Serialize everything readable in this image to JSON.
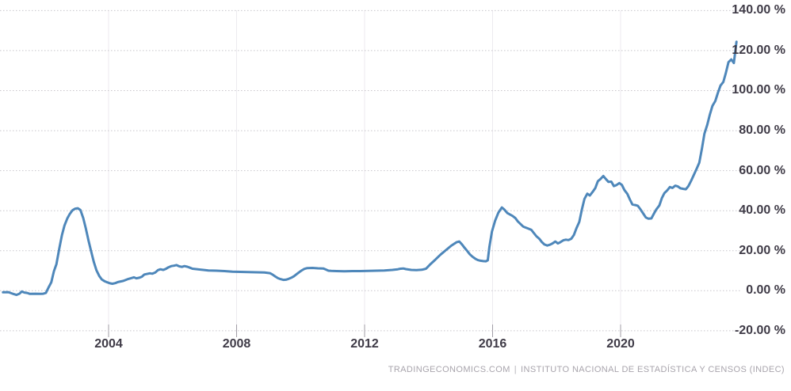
{
  "chart_data": {
    "type": "line",
    "title": "",
    "legend": "none",
    "grid": true,
    "x_range": [
      2000.6,
      2024.0
    ],
    "y_range": [
      -20,
      140
    ],
    "line_color": "#4e87ba",
    "y_ticks": [
      {
        "value": 140,
        "label": "140.00 %"
      },
      {
        "value": 120,
        "label": "120.00 %"
      },
      {
        "value": 100,
        "label": "100.00 %"
      },
      {
        "value": 80,
        "label": "80.00 %"
      },
      {
        "value": 60,
        "label": "60.00 %"
      },
      {
        "value": 40,
        "label": "40.00 %"
      },
      {
        "value": 20,
        "label": "20.00 %"
      },
      {
        "value": 0,
        "label": "0.00 %"
      },
      {
        "value": -20,
        "label": "-20.00 %"
      }
    ],
    "x_ticks": [
      {
        "year": 2004,
        "label": "2004"
      },
      {
        "year": 2008,
        "label": "2008"
      },
      {
        "year": 2012,
        "label": "2012"
      },
      {
        "year": 2016,
        "label": "2016"
      },
      {
        "year": 2020,
        "label": "2020"
      }
    ],
    "points": [
      [
        2000.7,
        -0.8
      ],
      [
        2000.87,
        -0.7
      ],
      [
        2001.04,
        -1.7
      ],
      [
        2001.12,
        -2.1
      ],
      [
        2001.21,
        -1.5
      ],
      [
        2001.29,
        -0.4
      ],
      [
        2001.37,
        -0.9
      ],
      [
        2001.46,
        -1.1
      ],
      [
        2001.54,
        -1.6
      ],
      [
        2001.71,
        -1.5
      ],
      [
        2001.87,
        -1.6
      ],
      [
        2001.96,
        -1.5
      ],
      [
        2002.04,
        -1.1
      ],
      [
        2002.12,
        1.5
      ],
      [
        2002.21,
        4.2
      ],
      [
        2002.29,
        9.7
      ],
      [
        2002.37,
        13.3
      ],
      [
        2002.46,
        21.1
      ],
      [
        2002.54,
        27.7
      ],
      [
        2002.62,
        32.5
      ],
      [
        2002.71,
        36.1
      ],
      [
        2002.79,
        38.4
      ],
      [
        2002.87,
        40.2
      ],
      [
        2002.96,
        41.0
      ],
      [
        2003.04,
        41.2
      ],
      [
        2003.12,
        40.3
      ],
      [
        2003.21,
        36.2
      ],
      [
        2003.29,
        31.1
      ],
      [
        2003.37,
        25.2
      ],
      [
        2003.46,
        19.4
      ],
      [
        2003.54,
        14.3
      ],
      [
        2003.62,
        10.2
      ],
      [
        2003.71,
        7.3
      ],
      [
        2003.79,
        5.6
      ],
      [
        2003.87,
        4.8
      ],
      [
        2003.96,
        4.2
      ],
      [
        2004.04,
        3.7
      ],
      [
        2004.12,
        3.5
      ],
      [
        2004.21,
        3.8
      ],
      [
        2004.29,
        4.3
      ],
      [
        2004.46,
        4.9
      ],
      [
        2004.62,
        5.9
      ],
      [
        2004.79,
        6.7
      ],
      [
        2004.87,
        6.2
      ],
      [
        2004.96,
        6.5
      ],
      [
        2005.04,
        7.0
      ],
      [
        2005.12,
        8.1
      ],
      [
        2005.29,
        8.7
      ],
      [
        2005.37,
        8.5
      ],
      [
        2005.46,
        9.1
      ],
      [
        2005.54,
        10.3
      ],
      [
        2005.62,
        10.7
      ],
      [
        2005.71,
        10.4
      ],
      [
        2005.79,
        10.9
      ],
      [
        2005.87,
        11.7
      ],
      [
        2005.96,
        12.3
      ],
      [
        2006.04,
        12.5
      ],
      [
        2006.12,
        12.8
      ],
      [
        2006.21,
        12.2
      ],
      [
        2006.29,
        11.9
      ],
      [
        2006.37,
        12.3
      ],
      [
        2006.46,
        12.0
      ],
      [
        2006.54,
        11.5
      ],
      [
        2006.62,
        11.0
      ],
      [
        2006.79,
        10.7
      ],
      [
        2006.96,
        10.4
      ],
      [
        2007.12,
        10.1
      ],
      [
        2007.37,
        10.0
      ],
      [
        2007.62,
        9.8
      ],
      [
        2007.87,
        9.5
      ],
      [
        2008.12,
        9.4
      ],
      [
        2008.37,
        9.3
      ],
      [
        2008.62,
        9.2
      ],
      [
        2008.87,
        9.1
      ],
      [
        2009.04,
        8.8
      ],
      [
        2009.12,
        8.1
      ],
      [
        2009.21,
        7.1
      ],
      [
        2009.29,
        6.3
      ],
      [
        2009.37,
        5.8
      ],
      [
        2009.46,
        5.4
      ],
      [
        2009.54,
        5.5
      ],
      [
        2009.62,
        5.9
      ],
      [
        2009.71,
        6.5
      ],
      [
        2009.79,
        7.2
      ],
      [
        2009.87,
        8.2
      ],
      [
        2009.96,
        9.3
      ],
      [
        2010.04,
        10.2
      ],
      [
        2010.12,
        10.9
      ],
      [
        2010.21,
        11.3
      ],
      [
        2010.37,
        11.4
      ],
      [
        2010.54,
        11.2
      ],
      [
        2010.71,
        11.1
      ],
      [
        2010.79,
        10.6
      ],
      [
        2010.87,
        10.0
      ],
      [
        2010.96,
        9.9
      ],
      [
        2011.12,
        9.8
      ],
      [
        2011.37,
        9.7
      ],
      [
        2011.62,
        9.8
      ],
      [
        2011.87,
        9.8
      ],
      [
        2012.12,
        9.9
      ],
      [
        2012.37,
        10.0
      ],
      [
        2012.62,
        10.1
      ],
      [
        2012.87,
        10.4
      ],
      [
        2013.04,
        10.7
      ],
      [
        2013.12,
        11.0
      ],
      [
        2013.21,
        11.1
      ],
      [
        2013.29,
        10.8
      ],
      [
        2013.46,
        10.4
      ],
      [
        2013.62,
        10.3
      ],
      [
        2013.79,
        10.5
      ],
      [
        2013.92,
        11.0
      ],
      [
        2014.04,
        13.0
      ],
      [
        2014.21,
        15.5
      ],
      [
        2014.37,
        18.0
      ],
      [
        2014.54,
        20.3
      ],
      [
        2014.71,
        22.5
      ],
      [
        2014.87,
        24.2
      ],
      [
        2014.96,
        24.6
      ],
      [
        2015.04,
        23.2
      ],
      [
        2015.12,
        21.5
      ],
      [
        2015.21,
        19.8
      ],
      [
        2015.29,
        18.2
      ],
      [
        2015.37,
        17.0
      ],
      [
        2015.46,
        16.0
      ],
      [
        2015.54,
        15.3
      ],
      [
        2015.62,
        15.0
      ],
      [
        2015.71,
        14.8
      ],
      [
        2015.79,
        14.7
      ],
      [
        2015.85,
        15.2
      ],
      [
        2015.9,
        22.0
      ],
      [
        2015.98,
        29.6
      ],
      [
        2016.08,
        35.0
      ],
      [
        2016.18,
        39.0
      ],
      [
        2016.29,
        41.6
      ],
      [
        2016.37,
        40.5
      ],
      [
        2016.46,
        38.8
      ],
      [
        2016.62,
        37.4
      ],
      [
        2016.71,
        36.3
      ],
      [
        2016.79,
        34.6
      ],
      [
        2016.96,
        32.0
      ],
      [
        2017.12,
        31.0
      ],
      [
        2017.21,
        30.4
      ],
      [
        2017.29,
        28.8
      ],
      [
        2017.37,
        27.2
      ],
      [
        2017.46,
        26.0
      ],
      [
        2017.54,
        24.3
      ],
      [
        2017.62,
        23.1
      ],
      [
        2017.71,
        22.6
      ],
      [
        2017.79,
        23.0
      ],
      [
        2017.87,
        23.6
      ],
      [
        2017.96,
        24.6
      ],
      [
        2018.04,
        23.6
      ],
      [
        2018.12,
        24.3
      ],
      [
        2018.21,
        25.2
      ],
      [
        2018.29,
        25.5
      ],
      [
        2018.37,
        25.3
      ],
      [
        2018.46,
        26.0
      ],
      [
        2018.54,
        27.9
      ],
      [
        2018.62,
        31.2
      ],
      [
        2018.71,
        34.4
      ],
      [
        2018.79,
        40.5
      ],
      [
        2018.87,
        45.9
      ],
      [
        2018.96,
        48.5
      ],
      [
        2019.04,
        47.6
      ],
      [
        2019.12,
        49.3
      ],
      [
        2019.21,
        51.3
      ],
      [
        2019.29,
        54.7
      ],
      [
        2019.37,
        55.8
      ],
      [
        2019.46,
        57.3
      ],
      [
        2019.54,
        55.8
      ],
      [
        2019.62,
        54.4
      ],
      [
        2019.71,
        54.5
      ],
      [
        2019.79,
        52.3
      ],
      [
        2019.87,
        52.8
      ],
      [
        2019.96,
        53.8
      ],
      [
        2020.04,
        52.9
      ],
      [
        2020.12,
        50.3
      ],
      [
        2020.21,
        48.4
      ],
      [
        2020.29,
        45.6
      ],
      [
        2020.37,
        43.1
      ],
      [
        2020.46,
        42.8
      ],
      [
        2020.54,
        42.4
      ],
      [
        2020.62,
        40.7
      ],
      [
        2020.71,
        38.5
      ],
      [
        2020.79,
        36.6
      ],
      [
        2020.87,
        36.0
      ],
      [
        2020.96,
        36.1
      ],
      [
        2021.04,
        38.5
      ],
      [
        2021.12,
        40.7
      ],
      [
        2021.21,
        42.6
      ],
      [
        2021.29,
        46.3
      ],
      [
        2021.37,
        48.8
      ],
      [
        2021.46,
        50.2
      ],
      [
        2021.54,
        51.8
      ],
      [
        2021.62,
        51.4
      ],
      [
        2021.71,
        52.5
      ],
      [
        2021.79,
        52.1
      ],
      [
        2021.87,
        51.2
      ],
      [
        2021.96,
        50.9
      ],
      [
        2022.04,
        50.7
      ],
      [
        2022.12,
        52.3
      ],
      [
        2022.21,
        55.1
      ],
      [
        2022.29,
        58.0
      ],
      [
        2022.37,
        60.7
      ],
      [
        2022.46,
        64.0
      ],
      [
        2022.54,
        71.0
      ],
      [
        2022.62,
        78.5
      ],
      [
        2022.71,
        83.0
      ],
      [
        2022.79,
        88.0
      ],
      [
        2022.87,
        92.4
      ],
      [
        2022.96,
        94.8
      ],
      [
        2023.04,
        98.8
      ],
      [
        2023.12,
        102.5
      ],
      [
        2023.21,
        104.3
      ],
      [
        2023.29,
        108.8
      ],
      [
        2023.37,
        114.2
      ],
      [
        2023.46,
        115.6
      ],
      [
        2023.54,
        113.8
      ],
      [
        2023.62,
        124.4
      ]
    ]
  },
  "footer": {
    "source_left": "TRADINGECONOMICS.COM",
    "separator": "|",
    "source_right": "INSTITUTO NACIONAL DE ESTADÍSTICA Y CENSOS (INDEC)"
  },
  "colors": {
    "background": "#ffffff",
    "line": "#4e87ba",
    "h_grid": "#c8c5cb",
    "v_grid": "#eceaef",
    "tick": "#a19da6",
    "axis_text": "#3f3b47",
    "footer_text": "#a8a4ac"
  }
}
